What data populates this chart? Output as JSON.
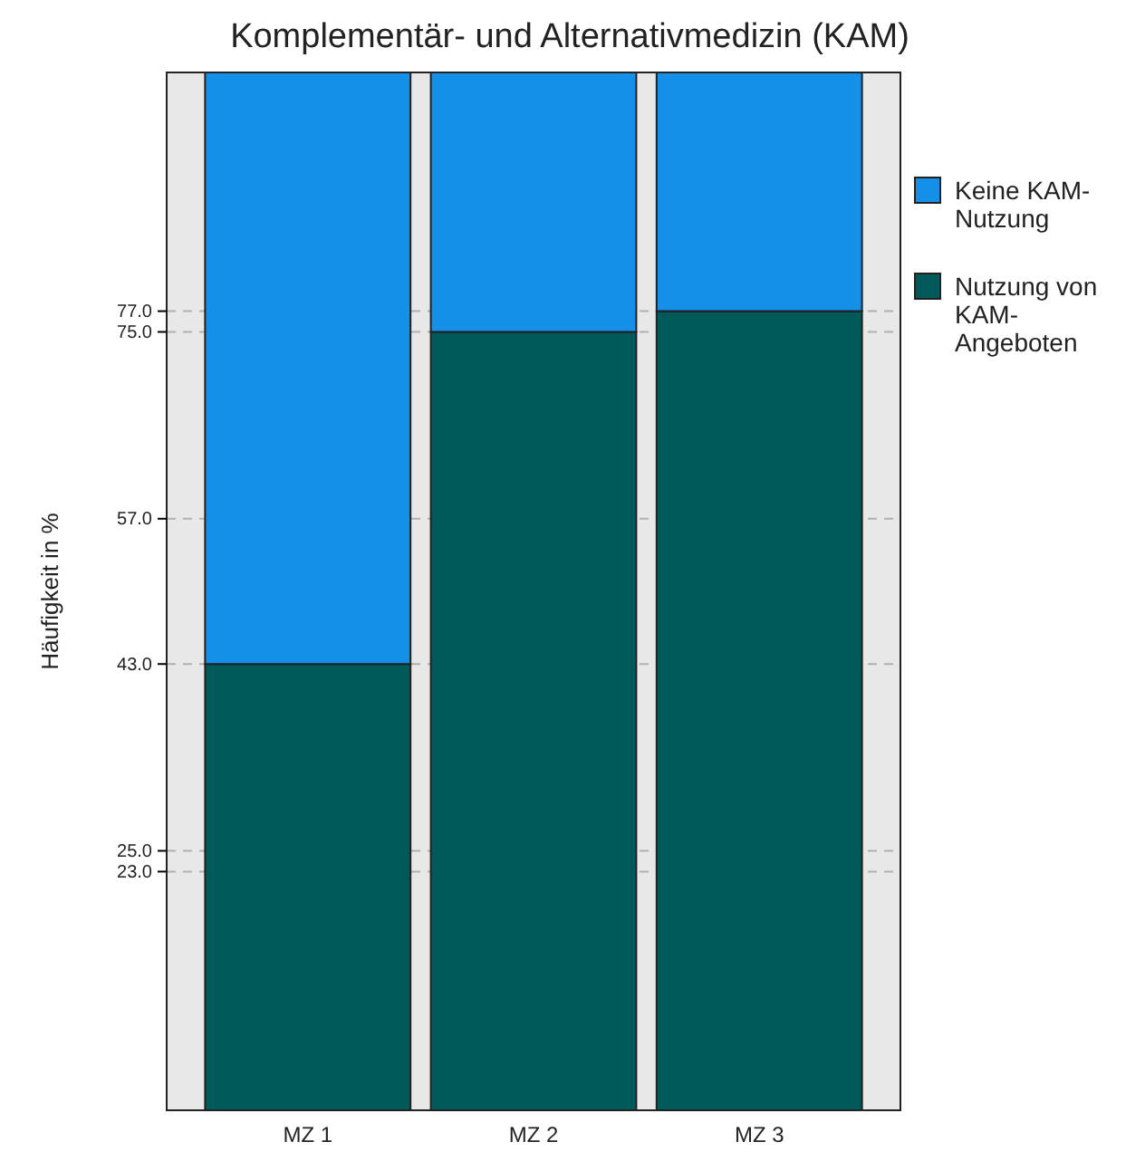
{
  "chart_data": {
    "type": "bar",
    "title": "Komplementär- und Alternativmedizin (KAM)",
    "ylabel": "Häufigkeit in %",
    "categories": [
      "MZ 1",
      "MZ 2",
      "MZ 3"
    ],
    "stacked": true,
    "series": [
      {
        "name": "Nutzung von KAM-Angeboten",
        "color": "#005a5a",
        "values": [
          43,
          75,
          77
        ]
      },
      {
        "name": "Keine KAM-Nutzung",
        "color": "#1490e8",
        "values": [
          57,
          25,
          23
        ]
      }
    ],
    "ylim": [
      0,
      100
    ],
    "yticks": [
      {
        "value": 23,
        "label": "23.0"
      },
      {
        "value": 25,
        "label": "25.0"
      },
      {
        "value": 43,
        "label": "43.0"
      },
      {
        "value": 57,
        "label": "57.0"
      },
      {
        "value": 75,
        "label": "75.0"
      },
      {
        "value": 77,
        "label": "77.0"
      }
    ],
    "grid": "y",
    "legend": "right"
  }
}
